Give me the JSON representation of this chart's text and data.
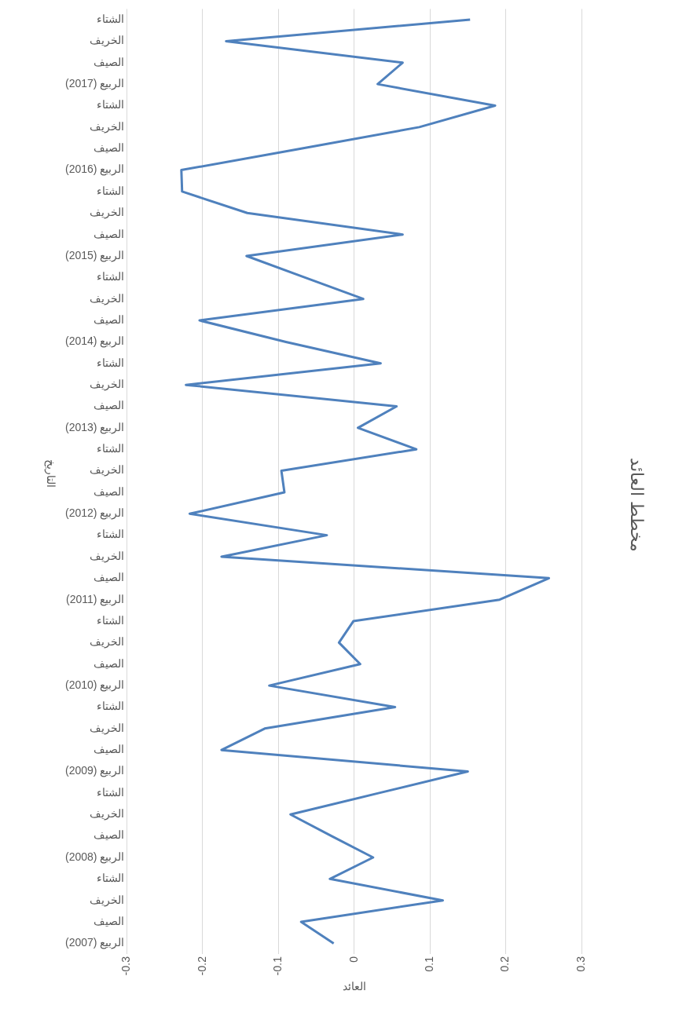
{
  "chart_data": {
    "type": "line",
    "title": "مخطط العائد",
    "xlabel": "العائد",
    "ylabel": "التاريخ",
    "orientation": "horizontal",
    "categories": [
      "الشتاء",
      "الخريف",
      "الصيف",
      "الربيع (2017)",
      "الشتاء",
      "الخريف",
      "الصيف",
      "الربيع (2016)",
      "الشتاء",
      "الخريف",
      "الصيف",
      "الربيع (2015)",
      "الشتاء",
      "الخريف",
      "الصيف",
      "الربيع (2014)",
      "الشتاء",
      "الخريف",
      "الصيف",
      "الربيع (2013)",
      "الشتاء",
      "الخريف",
      "الصيف",
      "الربيع (2012)",
      "الشتاء",
      "الخريف",
      "الصيف",
      "الربيع (2011)",
      "الشتاء",
      "الخريف",
      "الصيف",
      "الربيع (2010)",
      "الشتاء",
      "الخريف",
      "الصيف",
      "الربيع (2009)",
      "الشتاء",
      "الخريف",
      "الصيف",
      "الربيع (2008)",
      "الشتاء",
      "الخريف",
      "الصيف",
      "الربيع (2007)"
    ],
    "series": [
      {
        "color": "#4f81bd",
        "values": [
          0.153,
          -0.169,
          0.064,
          0.031,
          0.186,
          0.086,
          -0.07,
          -0.228,
          -0.227,
          -0.141,
          0.064,
          -0.142,
          -0.065,
          0.012,
          -0.204,
          -0.09,
          0.035,
          -0.222,
          0.056,
          0.005,
          0.082,
          -0.096,
          -0.092,
          -0.217,
          -0.036,
          -0.175,
          0.257,
          0.192,
          -0.001,
          -0.02,
          0.008,
          -0.112,
          0.054,
          -0.118,
          -0.175,
          0.15,
          0.033,
          -0.084,
          -0.03,
          0.025,
          -0.032,
          0.117,
          -0.07,
          -0.027
        ]
      }
    ],
    "xlim": [
      -0.3,
      0.3
    ],
    "xticks": [
      -0.3,
      -0.2,
      -0.1,
      0,
      0.1,
      0.2,
      0.3
    ],
    "grid": "x",
    "marker": "none",
    "line_style": "solid"
  }
}
